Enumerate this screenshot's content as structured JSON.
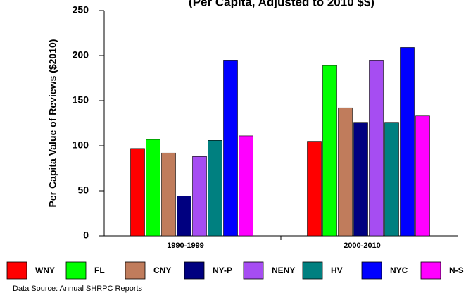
{
  "chart_data": {
    "type": "bar",
    "title": "(Per Capita, Adjusted to 2010 $$)",
    "y_label": "Per Capita Value of Reviews ($2010)",
    "source": "Data Source: Annual SHRPC Reports",
    "categories": [
      "1990-1999",
      "2000-2010"
    ],
    "series": [
      {
        "name": "WNY",
        "color": "#ff0000",
        "values": [
          97,
          105
        ]
      },
      {
        "name": "FL",
        "color": "#00ff00",
        "values": [
          107,
          189
        ]
      },
      {
        "name": "CNY",
        "color": "#c07c5c",
        "values": [
          92,
          142
        ]
      },
      {
        "name": "NY-P",
        "color": "#000080",
        "values": [
          44,
          126
        ]
      },
      {
        "name": "NENY",
        "color": "#a64df2",
        "values": [
          88,
          195
        ]
      },
      {
        "name": "HV",
        "color": "#008080",
        "values": [
          106,
          126
        ]
      },
      {
        "name": "NYC",
        "color": "#0000ff",
        "values": [
          195,
          209
        ]
      },
      {
        "name": "N-S",
        "color": "#ff00ff",
        "values": [
          111,
          133
        ]
      }
    ],
    "ylim": [
      0,
      250
    ],
    "yticks": [
      0,
      50,
      100,
      150,
      200,
      250
    ]
  }
}
